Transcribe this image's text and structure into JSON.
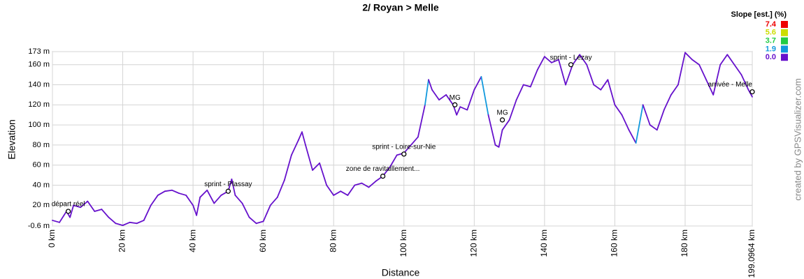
{
  "chart_data": {
    "type": "line",
    "title": "2/ Royan > Melle",
    "xlabel": "Distance",
    "ylabel": "Elevation",
    "credit": "created by GPSVisualizer.com",
    "xlim": [
      0,
      199.0964
    ],
    "ylim": [
      -0.6,
      173
    ],
    "xticks": [
      {
        "value": 0,
        "label": "0 km"
      },
      {
        "value": 20,
        "label": "20 km"
      },
      {
        "value": 40,
        "label": "40 km"
      },
      {
        "value": 60,
        "label": "60 km"
      },
      {
        "value": 80,
        "label": "80 km"
      },
      {
        "value": 100,
        "label": "100 km"
      },
      {
        "value": 120,
        "label": "120 km"
      },
      {
        "value": 140,
        "label": "140 km"
      },
      {
        "value": 160,
        "label": "160 km"
      },
      {
        "value": 180,
        "label": "180 km"
      },
      {
        "value": 199.0964,
        "label": "199.0964 km"
      }
    ],
    "yticks": [
      {
        "value": -0.6,
        "label": "-0.6 m"
      },
      {
        "value": 20,
        "label": "20 m"
      },
      {
        "value": 40,
        "label": "40 m"
      },
      {
        "value": 60,
        "label": "60 m"
      },
      {
        "value": 80,
        "label": "80 m"
      },
      {
        "value": 100,
        "label": "100 m"
      },
      {
        "value": 120,
        "label": "120 m"
      },
      {
        "value": 140,
        "label": "140 m"
      },
      {
        "value": 160,
        "label": "160 m"
      },
      {
        "value": 173,
        "label": "173 m"
      }
    ],
    "grid": true,
    "legend": {
      "title": "Slope [est.] (%)",
      "position": "top-right",
      "entries": [
        {
          "value": 7.4,
          "color": "#ee0000"
        },
        {
          "value": 5.6,
          "color": "#ccdd00"
        },
        {
          "value": 3.7,
          "color": "#22cc44"
        },
        {
          "value": 1.9,
          "color": "#1199dd"
        },
        {
          "value": {
            "value": 0,
            "label": "0.0"
          },
          "color": "#6611cc"
        }
      ]
    },
    "series": [
      {
        "name": "Elevation",
        "x": [
          0,
          2,
          4,
          5,
          6,
          8,
          10,
          12,
          14,
          16,
          18,
          20,
          22,
          24,
          26,
          28,
          30,
          32,
          34,
          36,
          38,
          40,
          41,
          42,
          44,
          46,
          48,
          50,
          51,
          52,
          54,
          56,
          58,
          60,
          61,
          62,
          64,
          66,
          68,
          70,
          71,
          72,
          74,
          76,
          78,
          80,
          82,
          84,
          86,
          88,
          90,
          92,
          94,
          96,
          98,
          100,
          102,
          104,
          106,
          107,
          108,
          110,
          112,
          114,
          115,
          116,
          118,
          120,
          122,
          124,
          126,
          127,
          128,
          130,
          132,
          134,
          136,
          138,
          140,
          142,
          144,
          146,
          147,
          148,
          150,
          152,
          154,
          156,
          158,
          160,
          162,
          164,
          166,
          168,
          170,
          172,
          174,
          176,
          178,
          180,
          182,
          184,
          186,
          188,
          190,
          192,
          194,
          196,
          198,
          199.0964
        ],
        "values": [
          5,
          3,
          14,
          8,
          20,
          18,
          24,
          14,
          16,
          8,
          2,
          0,
          3,
          2,
          5,
          20,
          30,
          34,
          35,
          32,
          30,
          20,
          10,
          28,
          35,
          22,
          30,
          34,
          46,
          30,
          22,
          8,
          2,
          4,
          12,
          20,
          28,
          45,
          70,
          85,
          93,
          80,
          55,
          62,
          40,
          30,
          34,
          30,
          40,
          42,
          38,
          44,
          49,
          58,
          70,
          72,
          80,
          88,
          120,
          145,
          135,
          125,
          130,
          120,
          110,
          118,
          115,
          135,
          148,
          110,
          80,
          78,
          95,
          105,
          125,
          140,
          138,
          155,
          168,
          162,
          165,
          140,
          150,
          160,
          170,
          160,
          140,
          135,
          145,
          120,
          110,
          95,
          82,
          120,
          100,
          95,
          115,
          130,
          140,
          172,
          165,
          160,
          145,
          130,
          160,
          170,
          160,
          150,
          135,
          128
        ]
      }
    ],
    "annotations": [
      {
        "text": "départ réel",
        "x": 4.5,
        "y": 14
      },
      {
        "text": "sprint - Plassay",
        "x": 50,
        "y": 34
      },
      {
        "text": "zone de ravitaillement...",
        "x": 94,
        "y": 49
      },
      {
        "text": "sprint - Loire-sur-Nie",
        "x": 100,
        "y": 71
      },
      {
        "text": "MG",
        "x": 114.5,
        "y": 120
      },
      {
        "text": "MG",
        "x": 128,
        "y": 105
      },
      {
        "text": "sprint - Lezay",
        "x": 147.5,
        "y": 160
      },
      {
        "text": "arrivée - Melle",
        "x": 199.0964,
        "y": 133
      }
    ]
  }
}
